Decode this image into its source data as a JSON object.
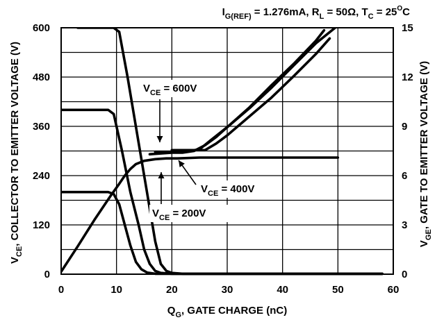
{
  "chart_data": {
    "type": "line",
    "title": {
      "parts": [
        {
          "t": "I",
          "s": "n"
        },
        {
          "t": "G(REF)",
          "s": "sub"
        },
        {
          "t": " = 1.276mA, R",
          "s": "n"
        },
        {
          "t": "L",
          "s": "sub"
        },
        {
          "t": " = 50Ω, T",
          "s": "n"
        },
        {
          "t": "C",
          "s": "sub"
        },
        {
          "t": " = 25",
          "s": "n"
        },
        {
          "t": "O",
          "s": "sup"
        },
        {
          "t": "C",
          "s": "n"
        }
      ]
    },
    "xlabel": {
      "parts": [
        {
          "t": "Q",
          "s": "n"
        },
        {
          "t": "G",
          "s": "sub"
        },
        {
          "t": ", GATE CHARGE (nC)",
          "s": "n"
        }
      ]
    },
    "ylabel_left": {
      "parts": [
        {
          "t": "V",
          "s": "n"
        },
        {
          "t": "CE",
          "s": "sub"
        },
        {
          "t": ", COLLECTOR TO EMITTER VOLTAGE (V)",
          "s": "n"
        }
      ]
    },
    "ylabel_right": {
      "parts": [
        {
          "t": "V",
          "s": "n"
        },
        {
          "t": "GE",
          "s": "sub"
        },
        {
          "t": ", GATE TO EMITTER VOLTAGE (V)",
          "s": "n"
        }
      ]
    },
    "xlim": [
      0,
      60
    ],
    "ylim_left": [
      0,
      600
    ],
    "ylim_right": [
      0,
      15
    ],
    "x_ticks": [
      "0",
      "10",
      "20",
      "30",
      "40",
      "50",
      "60"
    ],
    "y_left_ticks": [
      "0",
      "120",
      "240",
      "360",
      "480",
      "600"
    ],
    "y_right_ticks": [
      "0",
      "3",
      "6",
      "9",
      "12",
      "15"
    ],
    "grid": true,
    "annotations": [
      {
        "parts": [
          {
            "t": "V",
            "s": "n"
          },
          {
            "t": "CE",
            "s": "sub"
          },
          {
            "t": " = 600V",
            "s": "n"
          }
        ]
      },
      {
        "parts": [
          {
            "t": "V",
            "s": "n"
          },
          {
            "t": "CE",
            "s": "sub"
          },
          {
            "t": " = 400V",
            "s": "n"
          }
        ]
      },
      {
        "parts": [
          {
            "t": "V",
            "s": "n"
          },
          {
            "t": "CE",
            "s": "sub"
          },
          {
            "t": " = 200V",
            "s": "n"
          }
        ]
      }
    ],
    "series": [
      {
        "axis": "left",
        "x": [
          3,
          9.5,
          10.5,
          12,
          14,
          15.5,
          17,
          18,
          19,
          20,
          22,
          30,
          40,
          58
        ],
        "y": [
          600,
          600,
          590,
          480,
          320,
          200,
          80,
          25,
          8,
          3,
          1,
          1,
          1,
          1
        ]
      },
      {
        "axis": "left",
        "x": [
          0,
          8.5,
          9.5,
          11,
          12.5,
          14,
          15,
          16,
          17,
          18,
          20,
          58
        ],
        "y": [
          400,
          400,
          390,
          300,
          200,
          120,
          60,
          25,
          8,
          3,
          1,
          1
        ]
      },
      {
        "axis": "left",
        "x": [
          0,
          8.5,
          9.5,
          10.5,
          11.5,
          12.5,
          13.5,
          14.5,
          15.5,
          17,
          58
        ],
        "y": [
          200,
          200,
          195,
          170,
          120,
          70,
          30,
          12,
          4,
          1,
          1
        ]
      },
      {
        "axis": "right",
        "x": [
          0,
          3,
          6,
          9,
          10.5,
          11.5,
          12.5,
          13.5,
          15,
          17,
          19,
          21,
          25,
          30,
          35,
          40,
          45,
          50
        ],
        "y": [
          0.15,
          1.7,
          3.3,
          4.8,
          5.5,
          6.0,
          6.4,
          6.7,
          6.9,
          7.0,
          7.05,
          7.05,
          7.1,
          7.1,
          7.1,
          7.1,
          7.1,
          7.1
        ]
      },
      {
        "axis": "right",
        "x": [
          20,
          22,
          24,
          26,
          28,
          30,
          34,
          38,
          42,
          46,
          48.5
        ],
        "y": [
          7.55,
          7.55,
          7.55,
          7.55,
          7.95,
          8.45,
          9.6,
          10.75,
          12.05,
          13.4,
          14.35
        ]
      },
      {
        "axis": "right",
        "x": [
          17,
          20,
          23,
          25,
          27,
          30,
          34,
          38,
          42,
          46,
          49.5
        ],
        "y": [
          7.45,
          7.45,
          7.5,
          7.6,
          8.15,
          8.95,
          10.1,
          11.35,
          12.7,
          14.05,
          15.0
        ]
      },
      {
        "axis": "right",
        "x": [
          16,
          18,
          20,
          22,
          24,
          26,
          28,
          30,
          34,
          38,
          42,
          46,
          47.5
        ],
        "y": [
          7.3,
          7.35,
          7.4,
          7.4,
          7.5,
          7.85,
          8.35,
          8.95,
          10.15,
          11.5,
          12.8,
          14.2,
          14.85
        ]
      }
    ]
  }
}
